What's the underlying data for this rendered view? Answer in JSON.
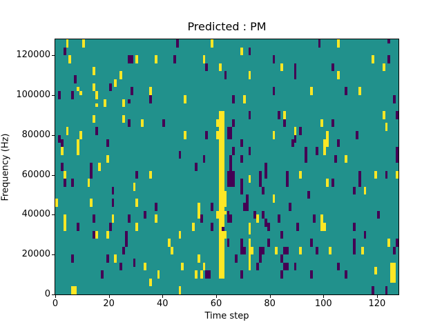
{
  "chart_data": {
    "type": "heatmap",
    "title": "Predicted : PM",
    "xlabel": "Time step",
    "ylabel": "Frequency (Hz)",
    "x_ticks": [
      0,
      20,
      40,
      60,
      80,
      100,
      120
    ],
    "y_ticks": [
      0,
      20000,
      40000,
      60000,
      80000,
      100000,
      120000
    ],
    "xlim": [
      0,
      128
    ],
    "ylim": [
      0,
      128000
    ],
    "grid_cols": 128,
    "grid_rows": 64,
    "hz_per_row": 2000,
    "legend": "none",
    "grid": "off",
    "colors": {
      "background_mid": "#21918c",
      "low_dark": "#440154",
      "high_yellow": "#fde725",
      "figure_bg": "#ffffff",
      "axis": "#000000"
    },
    "cells_note": "Each cell = [time_step_col, row_from_top, color(y=yellow/d=dark), width_cols(optional,default 1), height_rows(optional,default 2)]. frequency_hz of a cell top = (64 - row_from_top) * 2000. Background everywhere else is background_mid teal.",
    "cells": [
      [
        4,
        0,
        "y"
      ],
      [
        10,
        0,
        "y"
      ],
      [
        3,
        2,
        "d"
      ],
      [
        5,
        4,
        "y"
      ],
      [
        27,
        4,
        "d",
        2,
        2
      ],
      [
        30,
        4,
        "y"
      ],
      [
        14,
        7,
        "y"
      ],
      [
        24,
        8,
        "y"
      ],
      [
        7,
        9,
        "d"
      ],
      [
        22,
        10,
        "y"
      ],
      [
        14,
        11,
        "y"
      ],
      [
        20,
        11,
        "d"
      ],
      [
        28,
        12,
        "d"
      ],
      [
        8,
        12,
        "y",
        1,
        1
      ],
      [
        9,
        13,
        "y",
        1,
        1
      ],
      [
        1,
        13,
        "d"
      ],
      [
        6,
        13,
        "d"
      ],
      [
        15,
        13,
        "y"
      ],
      [
        18,
        15,
        "y"
      ],
      [
        25,
        15,
        "y"
      ],
      [
        27,
        15,
        "d",
        1,
        1
      ],
      [
        15,
        16,
        "y",
        1,
        1
      ],
      [
        14,
        19,
        "y"
      ],
      [
        25,
        19,
        "y"
      ],
      [
        27,
        20,
        "d"
      ],
      [
        45,
        0,
        "d"
      ],
      [
        58,
        0,
        "y"
      ],
      [
        37,
        4,
        "y"
      ],
      [
        44,
        4,
        "d"
      ],
      [
        55,
        4,
        "y"
      ],
      [
        56,
        6,
        "d"
      ],
      [
        61,
        6,
        "y"
      ],
      [
        63,
        8,
        "d"
      ],
      [
        35,
        12,
        "y"
      ],
      [
        35,
        14,
        "d"
      ],
      [
        48,
        14,
        "y"
      ],
      [
        62,
        18,
        "y"
      ],
      [
        60,
        20,
        "y"
      ],
      [
        32,
        20,
        "y"
      ],
      [
        40,
        20,
        "d"
      ],
      [
        69,
        2,
        "y"
      ],
      [
        72,
        2,
        "d"
      ],
      [
        81,
        4,
        "d"
      ],
      [
        84,
        6,
        "y"
      ],
      [
        89,
        6,
        "d"
      ],
      [
        89,
        8,
        "d"
      ],
      [
        72,
        8,
        "y"
      ],
      [
        81,
        12,
        "d"
      ],
      [
        95,
        12,
        "y"
      ],
      [
        66,
        14,
        "d"
      ],
      [
        70,
        14,
        "y"
      ],
      [
        72,
        18,
        "d"
      ],
      [
        83,
        18,
        "d"
      ],
      [
        85,
        18,
        "y"
      ],
      [
        85,
        20,
        "d"
      ],
      [
        66,
        20,
        "d"
      ],
      [
        98,
        0,
        "d"
      ],
      [
        105,
        0,
        "y"
      ],
      [
        124,
        0,
        "d",
        1,
        1
      ],
      [
        118,
        4,
        "y"
      ],
      [
        124,
        4,
        "d"
      ],
      [
        103,
        6,
        "d"
      ],
      [
        122,
        6,
        "y"
      ],
      [
        105,
        8,
        "y"
      ],
      [
        108,
        12,
        "d"
      ],
      [
        113,
        12,
        "y"
      ],
      [
        126,
        14,
        "d"
      ],
      [
        122,
        18,
        "y"
      ],
      [
        127,
        18,
        "d"
      ],
      [
        99,
        20,
        "y"
      ],
      [
        103,
        20,
        "d"
      ],
      [
        4,
        22,
        "y"
      ],
      [
        15,
        22,
        "d"
      ],
      [
        1,
        24,
        "d"
      ],
      [
        9,
        23,
        "y"
      ],
      [
        8,
        25,
        "y",
        1,
        4
      ],
      [
        2,
        25,
        "d"
      ],
      [
        19,
        25,
        "d"
      ],
      [
        2,
        27,
        "y"
      ],
      [
        19,
        29,
        "y"
      ],
      [
        13,
        31,
        "d",
        1,
        4
      ],
      [
        16,
        31,
        "y"
      ],
      [
        2,
        31,
        "d"
      ],
      [
        3,
        33,
        "y"
      ],
      [
        30,
        33,
        "d"
      ],
      [
        3,
        35,
        "d"
      ],
      [
        6,
        35,
        "d"
      ],
      [
        12,
        35,
        "y"
      ],
      [
        21,
        37,
        "d"
      ],
      [
        29,
        36,
        "y"
      ],
      [
        13,
        40,
        "y"
      ],
      [
        21,
        40,
        "d"
      ],
      [
        30,
        40,
        "y"
      ],
      [
        0,
        40,
        "y"
      ],
      [
        48,
        23,
        "y"
      ],
      [
        56,
        23,
        "d"
      ],
      [
        46,
        28,
        "d"
      ],
      [
        55,
        29,
        "d"
      ],
      [
        52,
        31,
        "d"
      ],
      [
        35,
        33,
        "y"
      ],
      [
        37,
        41,
        "d"
      ],
      [
        53,
        41,
        "y"
      ],
      [
        58,
        41,
        "d"
      ],
      [
        61,
        18,
        "y",
        2,
        42
      ],
      [
        60,
        23,
        "y",
        1,
        2
      ],
      [
        63,
        38,
        "y",
        1,
        4
      ],
      [
        60,
        43,
        "y",
        1,
        2
      ],
      [
        63,
        43,
        "y",
        1,
        1
      ],
      [
        63,
        48,
        "y",
        1,
        2
      ],
      [
        62,
        47,
        "d",
        1,
        1
      ],
      [
        64,
        22,
        "d",
        2,
        3
      ],
      [
        69,
        25,
        "d"
      ],
      [
        66,
        27,
        "d"
      ],
      [
        72,
        27,
        "d"
      ],
      [
        65,
        29,
        "d"
      ],
      [
        69,
        29,
        "d"
      ],
      [
        65,
        31,
        "d"
      ],
      [
        78,
        31,
        "d",
        1,
        4
      ],
      [
        64,
        33,
        "d",
        3,
        4
      ],
      [
        76,
        33,
        "d",
        1,
        4
      ],
      [
        89,
        22,
        "y"
      ],
      [
        91,
        22,
        "d"
      ],
      [
        81,
        23,
        "y"
      ],
      [
        89,
        24,
        "d"
      ],
      [
        88,
        25,
        "d"
      ],
      [
        93,
        27,
        "d",
        1,
        4
      ],
      [
        86,
        33,
        "d"
      ],
      [
        91,
        33,
        "y"
      ],
      [
        86,
        35,
        "d"
      ],
      [
        69,
        35,
        "d",
        1,
        4
      ],
      [
        72,
        34,
        "y"
      ],
      [
        77,
        37,
        "d"
      ],
      [
        71,
        39,
        "d",
        1,
        4
      ],
      [
        70,
        41,
        "d"
      ],
      [
        81,
        39,
        "y"
      ],
      [
        94,
        38,
        "d"
      ],
      [
        87,
        41,
        "d"
      ],
      [
        123,
        21,
        "y"
      ],
      [
        101,
        23,
        "y"
      ],
      [
        100,
        25,
        "y",
        2,
        2
      ],
      [
        100,
        27,
        "y"
      ],
      [
        112,
        23,
        "d"
      ],
      [
        105,
        25,
        "d"
      ],
      [
        97,
        27,
        "d"
      ],
      [
        127,
        27,
        "d",
        1,
        4
      ],
      [
        104,
        29,
        "d"
      ],
      [
        108,
        29,
        "y"
      ],
      [
        113,
        33,
        "d",
        1,
        4
      ],
      [
        119,
        33,
        "y"
      ],
      [
        123,
        33,
        "d"
      ],
      [
        127,
        33,
        "y"
      ],
      [
        101,
        35,
        "y"
      ],
      [
        103,
        35,
        "d"
      ],
      [
        111,
        37,
        "d"
      ],
      [
        115,
        37,
        "y"
      ],
      [
        3,
        44,
        "y",
        1,
        4
      ],
      [
        14,
        44,
        "d"
      ],
      [
        21,
        44,
        "y"
      ],
      [
        27,
        44,
        "d"
      ],
      [
        8,
        46,
        "d"
      ],
      [
        20,
        46,
        "d"
      ],
      [
        30,
        46,
        "y"
      ],
      [
        14,
        48,
        "d"
      ],
      [
        15,
        48,
        "y"
      ],
      [
        19,
        48,
        "y"
      ],
      [
        26,
        48,
        "d",
        1,
        4
      ],
      [
        25,
        52,
        "d"
      ],
      [
        6,
        54,
        "d"
      ],
      [
        19,
        54,
        "d"
      ],
      [
        22,
        54,
        "y"
      ],
      [
        24,
        56,
        "d"
      ],
      [
        29,
        55,
        "d"
      ],
      [
        17,
        58,
        "d"
      ],
      [
        7,
        62,
        "y"
      ],
      [
        33,
        43,
        "d"
      ],
      [
        37,
        44,
        "y"
      ],
      [
        54,
        44,
        "d"
      ],
      [
        51,
        46,
        "y"
      ],
      [
        58,
        46,
        "d"
      ],
      [
        46,
        48,
        "y"
      ],
      [
        42,
        50,
        "y"
      ],
      [
        43,
        52,
        "y"
      ],
      [
        53,
        54,
        "y"
      ],
      [
        33,
        56,
        "y"
      ],
      [
        47,
        56,
        "y"
      ],
      [
        55,
        56,
        "y"
      ],
      [
        38,
        58,
        "y"
      ],
      [
        52,
        58,
        "y"
      ],
      [
        54,
        58,
        "y"
      ],
      [
        56,
        58,
        "d",
        2,
        2
      ],
      [
        35,
        60,
        "y"
      ],
      [
        46,
        62,
        "y"
      ],
      [
        53,
        43,
        "y"
      ],
      [
        64,
        43,
        "d"
      ],
      [
        64,
        44,
        "d",
        2,
        2
      ],
      [
        74,
        43,
        "d"
      ],
      [
        77,
        43,
        "d"
      ],
      [
        75,
        44,
        "y"
      ],
      [
        78,
        45,
        "d"
      ],
      [
        83,
        44,
        "d"
      ],
      [
        72,
        46,
        "y",
        1,
        3
      ],
      [
        79,
        46,
        "d"
      ],
      [
        90,
        46,
        "d"
      ],
      [
        84,
        48,
        "d"
      ],
      [
        64,
        50,
        "d"
      ],
      [
        69,
        50,
        "d",
        1,
        4
      ],
      [
        70,
        52,
        "d"
      ],
      [
        72,
        50,
        "y",
        1,
        4
      ],
      [
        73,
        52,
        "y"
      ],
      [
        76,
        52,
        "d",
        2,
        2
      ],
      [
        79,
        50,
        "d"
      ],
      [
        82,
        52,
        "y"
      ],
      [
        85,
        52,
        "d"
      ],
      [
        86,
        52,
        "d"
      ],
      [
        91,
        52,
        "y"
      ],
      [
        95,
        50,
        "d"
      ],
      [
        67,
        54,
        "d"
      ],
      [
        72,
        54,
        "y",
        1,
        4
      ],
      [
        75,
        56,
        "d"
      ],
      [
        76,
        54,
        "d"
      ],
      [
        84,
        54,
        "d"
      ],
      [
        85,
        56,
        "d"
      ],
      [
        86,
        56,
        "d"
      ],
      [
        89,
        56,
        "d"
      ],
      [
        69,
        58,
        "d"
      ],
      [
        84,
        58,
        "d"
      ],
      [
        95,
        58,
        "d"
      ],
      [
        120,
        43,
        "d"
      ],
      [
        96,
        44,
        "d"
      ],
      [
        99,
        44,
        "y"
      ],
      [
        99,
        46,
        "y",
        2,
        2
      ],
      [
        111,
        46,
        "d"
      ],
      [
        115,
        48,
        "d"
      ],
      [
        111,
        50,
        "d",
        1,
        4
      ],
      [
        124,
        50,
        "y"
      ],
      [
        127,
        50,
        "d"
      ],
      [
        97,
        52,
        "d"
      ],
      [
        102,
        52,
        "y"
      ],
      [
        114,
        52,
        "y"
      ],
      [
        126,
        52,
        "d"
      ],
      [
        105,
        56,
        "d"
      ],
      [
        125,
        56,
        "y",
        2,
        5
      ],
      [
        108,
        58,
        "d"
      ],
      [
        119,
        57,
        "y"
      ],
      [
        123,
        62,
        "d"
      ],
      [
        6,
        62,
        "y"
      ],
      [
        118,
        62,
        "d"
      ]
    ]
  }
}
